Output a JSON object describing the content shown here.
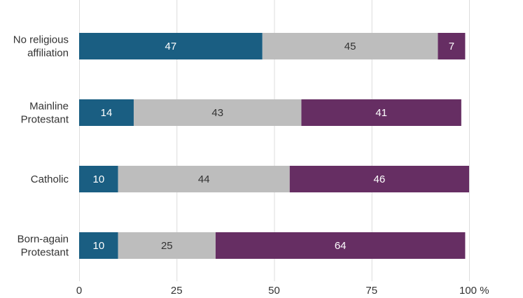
{
  "chart_data": {
    "type": "bar",
    "orientation": "horizontal",
    "stacked": true,
    "categories": [
      "No religious affiliation",
      "Mainline Protestant",
      "Catholic",
      "Born-again Protestant"
    ],
    "category_label_lines": [
      [
        "No religious",
        "affiliation"
      ],
      [
        "Mainline",
        "Protestant"
      ],
      [
        "Catholic"
      ],
      [
        "Born-again",
        "Protestant"
      ]
    ],
    "series": [
      {
        "values": [
          47,
          14,
          10,
          10
        ],
        "color": "#1a5e82",
        "label_color": "#ffffff"
      },
      {
        "values": [
          45,
          43,
          44,
          25
        ],
        "color": "#bdbdbd",
        "label_color": "#333333"
      },
      {
        "values": [
          7,
          41,
          46,
          64
        ],
        "color": "#662e63",
        "label_color": "#ffffff"
      }
    ],
    "xlim": [
      0,
      100
    ],
    "xticks": [
      0,
      25,
      50,
      75,
      100
    ],
    "xtick_labels": [
      "0",
      "25",
      "50",
      "75",
      "100 %"
    ],
    "grid": true,
    "title": "",
    "xlabel": "",
    "ylabel": ""
  }
}
